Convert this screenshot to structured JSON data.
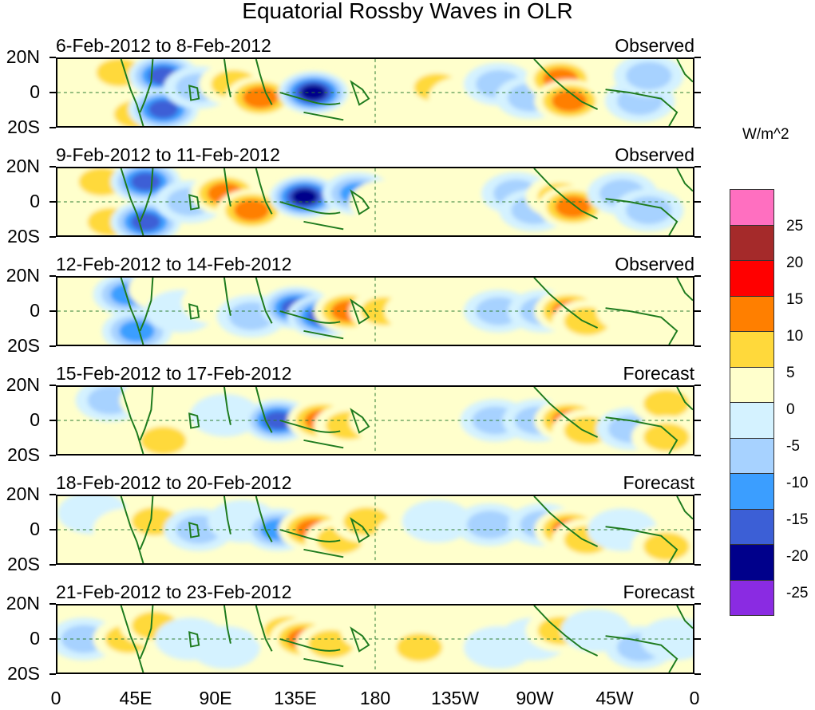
{
  "title": "Equatorial Rossby Waves in OLR",
  "panels": [
    {
      "dates": "6-Feb-2012 to 8-Feb-2012",
      "kind": "Observed"
    },
    {
      "dates": "9-Feb-2012 to 11-Feb-2012",
      "kind": "Observed"
    },
    {
      "dates": "12-Feb-2012 to 14-Feb-2012",
      "kind": "Observed"
    },
    {
      "dates": "15-Feb-2012 to 17-Feb-2012",
      "kind": "Forecast"
    },
    {
      "dates": "18-Feb-2012 to 20-Feb-2012",
      "kind": "Forecast"
    },
    {
      "dates": "21-Feb-2012 to 23-Feb-2012",
      "kind": "Forecast"
    }
  ],
  "y_labels": {
    "n": "20N",
    "eq": "0",
    "s": "20S"
  },
  "x_labels": [
    "0",
    "45E",
    "90E",
    "135E",
    "180",
    "135W",
    "90W",
    "45W",
    "0"
  ],
  "colorbar": {
    "units": "W/m^2",
    "labels": [
      "25",
      "20",
      "15",
      "10",
      "5",
      "0",
      "-5",
      "-10",
      "-15",
      "-20",
      "-25"
    ],
    "colors": [
      "#ff6fc0",
      "#a52a2a",
      "#ff0000",
      "#ff7f00",
      "#ffd93b",
      "#ffffcc",
      "#d4f2ff",
      "#a7d2ff",
      "#3b9eff",
      "#3c5fd6",
      "#00008b",
      "#8a2be2"
    ]
  },
  "chart_data": {
    "type": "heatmap",
    "variable": "OLR anomaly (W/m^2)",
    "lon_range_deg": [
      0,
      360
    ],
    "lat_range_deg": [
      -20,
      20
    ],
    "levels": [
      -25,
      -20,
      -15,
      -10,
      -5,
      0,
      5,
      10,
      15,
      20,
      25
    ],
    "anomaly_features": [
      {
        "panel": 0,
        "features": [
          [
            35,
            12,
            10
          ],
          [
            45,
            -13,
            12
          ],
          [
            60,
            10,
            -20
          ],
          [
            60,
            -10,
            -20
          ],
          [
            80,
            3,
            -14
          ],
          [
            100,
            5,
            14
          ],
          [
            115,
            -3,
            16
          ],
          [
            145,
            0,
            -27
          ],
          [
            190,
            3,
            8
          ],
          [
            215,
            3,
            10
          ],
          [
            230,
            -3,
            6
          ],
          [
            250,
            5,
            -12
          ],
          [
            268,
            -3,
            -14
          ],
          [
            285,
            8,
            16
          ],
          [
            290,
            -5,
            16
          ],
          [
            330,
            -5,
            -14
          ],
          [
            335,
            10,
            -10
          ]
        ]
      },
      {
        "panel": 1,
        "features": [
          [
            25,
            12,
            10
          ],
          [
            30,
            -12,
            12
          ],
          [
            50,
            12,
            -20
          ],
          [
            50,
            -12,
            -20
          ],
          [
            75,
            0,
            -10
          ],
          [
            95,
            5,
            15
          ],
          [
            110,
            -5,
            16
          ],
          [
            140,
            3,
            -27
          ],
          [
            170,
            5,
            -18
          ],
          [
            185,
            0,
            8
          ],
          [
            215,
            5,
            8
          ],
          [
            235,
            -2,
            6
          ],
          [
            260,
            5,
            -14
          ],
          [
            270,
            -5,
            -14
          ],
          [
            285,
            3,
            14
          ],
          [
            292,
            -3,
            16
          ],
          [
            320,
            5,
            -12
          ],
          [
            335,
            -5,
            -14
          ]
        ]
      },
      {
        "panel": 2,
        "features": [
          [
            40,
            10,
            -18
          ],
          [
            45,
            -12,
            -18
          ],
          [
            60,
            13,
            6
          ],
          [
            70,
            0,
            -8
          ],
          [
            90,
            5,
            8
          ],
          [
            110,
            -3,
            -10
          ],
          [
            135,
            2,
            -22
          ],
          [
            150,
            -3,
            -20
          ],
          [
            165,
            0,
            16
          ],
          [
            185,
            0,
            12
          ],
          [
            205,
            0,
            8
          ],
          [
            250,
            0,
            -12
          ],
          [
            275,
            0,
            -10
          ],
          [
            290,
            0,
            16
          ],
          [
            300,
            -6,
            14
          ],
          [
            325,
            0,
            6
          ],
          [
            345,
            10,
            8
          ]
        ]
      },
      {
        "panel": 3,
        "features": [
          [
            30,
            12,
            -10
          ],
          [
            55,
            12,
            8
          ],
          [
            60,
            -12,
            10
          ],
          [
            95,
            3,
            -8
          ],
          [
            125,
            0,
            -20
          ],
          [
            150,
            0,
            16
          ],
          [
            165,
            -3,
            14
          ],
          [
            185,
            0,
            8
          ],
          [
            200,
            -3,
            6
          ],
          [
            225,
            -3,
            6
          ],
          [
            248,
            0,
            -14
          ],
          [
            272,
            0,
            -12
          ],
          [
            290,
            0,
            18
          ],
          [
            300,
            -6,
            14
          ],
          [
            325,
            -5,
            -10
          ],
          [
            345,
            10,
            10
          ],
          [
            345,
            -10,
            10
          ]
        ]
      },
      {
        "panel": 4,
        "features": [
          [
            20,
            10,
            -8
          ],
          [
            40,
            0,
            8
          ],
          [
            55,
            5,
            10
          ],
          [
            80,
            0,
            -12
          ],
          [
            105,
            5,
            -8
          ],
          [
            125,
            0,
            -18
          ],
          [
            145,
            0,
            18
          ],
          [
            160,
            -6,
            14
          ],
          [
            175,
            5,
            10
          ],
          [
            200,
            -3,
            8
          ],
          [
            215,
            5,
            -6
          ],
          [
            245,
            3,
            -14
          ],
          [
            275,
            3,
            -12
          ],
          [
            290,
            0,
            16
          ],
          [
            300,
            -6,
            10
          ],
          [
            320,
            0,
            -8
          ],
          [
            345,
            -10,
            10
          ]
        ]
      },
      {
        "panel": 5,
        "features": [
          [
            15,
            0,
            -10
          ],
          [
            40,
            0,
            12
          ],
          [
            55,
            8,
            10
          ],
          [
            75,
            0,
            -8
          ],
          [
            95,
            -5,
            -6
          ],
          [
            130,
            5,
            10
          ],
          [
            140,
            0,
            18
          ],
          [
            155,
            -3,
            14
          ],
          [
            180,
            5,
            8
          ],
          [
            205,
            -5,
            10
          ],
          [
            235,
            5,
            8
          ],
          [
            250,
            -5,
            -8
          ],
          [
            270,
            0,
            -8
          ],
          [
            285,
            5,
            14
          ],
          [
            305,
            5,
            -8
          ],
          [
            330,
            -5,
            -10
          ],
          [
            350,
            0,
            -8
          ]
        ]
      }
    ]
  }
}
